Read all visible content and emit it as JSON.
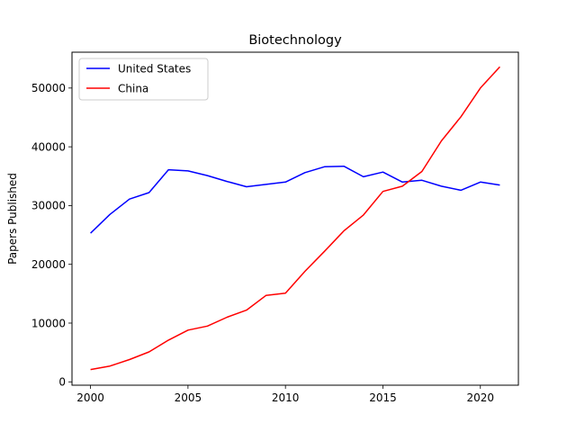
{
  "chart_data": {
    "type": "line",
    "title": "Biotechnology",
    "xlabel": "",
    "ylabel": "Papers Published",
    "xlim": [
      1999.05,
      2021.95
    ],
    "ylim": [
      -570,
      56100
    ],
    "xticks": [
      2000,
      2005,
      2010,
      2015,
      2020
    ],
    "yticks": [
      0,
      10000,
      20000,
      30000,
      40000,
      50000
    ],
    "grid": false,
    "legend": "top-left",
    "x": [
      2000,
      2001,
      2002,
      2003,
      2004,
      2005,
      2006,
      2007,
      2008,
      2009,
      2010,
      2011,
      2012,
      2013,
      2014,
      2015,
      2016,
      2017,
      2018,
      2019,
      2020,
      2021
    ],
    "series": [
      {
        "name": "United States",
        "color": "#0000ff",
        "values": [
          25300,
          28500,
          31100,
          32200,
          36100,
          35900,
          35100,
          34100,
          33200,
          33600,
          34000,
          35600,
          36600,
          36700,
          34900,
          35700,
          34000,
          34300,
          33300,
          32600,
          34000,
          33500
        ]
      },
      {
        "name": "China",
        "color": "#ff0000",
        "values": [
          2100,
          2700,
          3800,
          5100,
          7100,
          8800,
          9500,
          11000,
          12200,
          14700,
          15100,
          18800,
          22200,
          25700,
          28400,
          32400,
          33300,
          35800,
          41000,
          45100,
          50000,
          53600
        ]
      }
    ]
  }
}
